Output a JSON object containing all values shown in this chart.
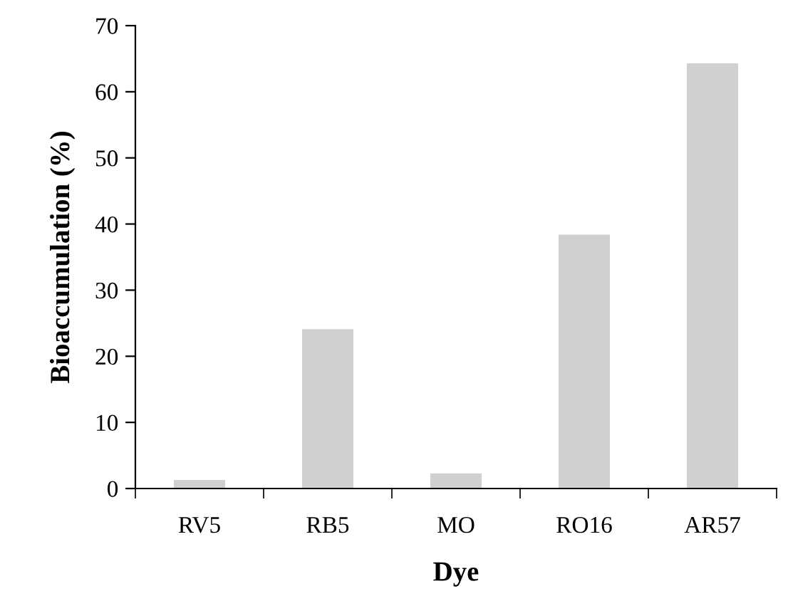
{
  "chart_data": {
    "type": "bar",
    "xlabel": "Dye",
    "ylabel": "Bioaccumulation (%)",
    "categories": [
      "RV5",
      "RB5",
      "MO",
      "RO16",
      "AR57"
    ],
    "values": [
      1.3,
      24.1,
      2.3,
      38.4,
      64.3
    ],
    "color": "#d0d0d0",
    "ylim": [
      0,
      70
    ],
    "yticks": [
      0,
      10,
      20,
      30,
      40,
      50,
      60,
      70
    ],
    "grid": false
  }
}
